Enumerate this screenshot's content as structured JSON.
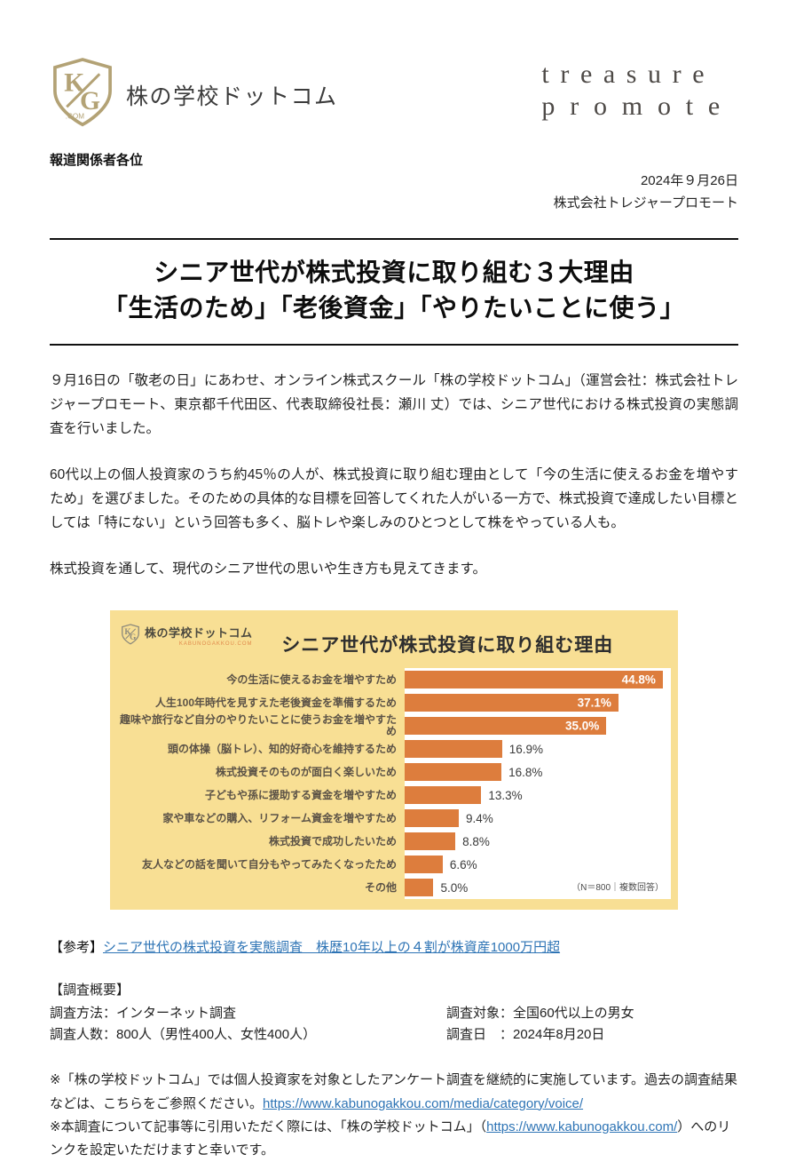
{
  "header": {
    "logo_text": "株の学校ドットコム",
    "logo_mark_k": "K",
    "logo_mark_g": "G",
    "logo_domain": ".COM",
    "company_logo_line1": "treasure",
    "company_logo_line2": "promote",
    "press_to": "報道関係者各位",
    "date": "2024年９月26日",
    "company": "株式会社トレジャープロモート"
  },
  "title": {
    "line1": "シニア世代が株式投資に取り組む３大理由",
    "line2": "「生活のため」「老後資金」「やりたいことに使う」"
  },
  "body": {
    "p1": "９月16日の「敬老の日」にあわせ、オンライン株式スクール「株の学校ドットコム」（運営会社：株式会社トレジャープロモート、東京都千代田区、代表取締役社長：瀬川 丈）では、シニア世代における株式投資の実態調査を行いました。",
    "p2": "60代以上の個人投資家のうち約45％の人が、株式投資に取り組む理由として「今の生活に使えるお金を増やすため」を選びました。そのための具体的な目標を回答してくれた人がいる一方で、株式投資で達成したい目標としては「特にない」という回答も多く、脳トレや楽しみのひとつとして株をやっている人も。",
    "p3": "株式投資を通して、現代のシニア世代の思いや生き方も見えてきます。"
  },
  "chart": {
    "logo_text": "株の学校ドットコム",
    "logo_sub": "KABUNOGAKKOU.COM",
    "inside_label_threshold": 30
  },
  "chart_data": {
    "type": "bar",
    "orientation": "horizontal",
    "title": "シニア世代が株式投資に取り組む理由",
    "categories": [
      "今の生活に使えるお金を増やすため",
      "人生100年時代を見すえた老後資金を準備するため",
      "趣味や旅行など自分のやりたいことに使うお金を増やすため",
      "頭の体操（脳トレ）、知的好奇心を維持するため",
      "株式投資そのものが面白く楽しいため",
      "子どもや孫に援助する資金を増やすため",
      "家や車などの購入、リフォーム資金を増やすため",
      "株式投資で成功したいため",
      "友人などの話を聞いて自分もやってみたくなったため",
      "その他"
    ],
    "values": [
      44.8,
      37.1,
      35.0,
      16.9,
      16.8,
      13.3,
      9.4,
      8.8,
      6.6,
      5.0
    ],
    "value_suffix": "%",
    "xlim": [
      0,
      46.2
    ],
    "note": "（N＝800｜複数回答）",
    "legend": "none",
    "grid": "off"
  },
  "reference": {
    "prefix": "【参考】",
    "link_text": "シニア世代の株式投資を実態調査　株歴10年以上の４割が株資産1000万円超"
  },
  "survey": {
    "heading": "【調査概要】",
    "rows": [
      {
        "left": "調査方法：インターネット調査",
        "right": "調査対象：全国60代以上の男女"
      },
      {
        "left": "調査人数：800人（男性400人、女性400人）",
        "right": "調査日　：2024年8月20日"
      }
    ]
  },
  "notes": {
    "n1_prefix": "※「株の学校ドットコム」では個人投資家を対象としたアンケート調査を継続的に実施しています。過去の調査結果などは、こちらをご参照ください。",
    "n1_link": "https://www.kabunogakkou.com/media/category/voice/",
    "n2_prefix": "※本調査について記事等に引用いただく際には、「株の学校ドットコム」（",
    "n2_link": "https://www.kabunogakkou.com/",
    "n2_suffix": "）へのリンクを設定いただけますと幸いです。"
  },
  "colors": {
    "bar": "#DD7D3D",
    "chart_bg": "#F8DF94",
    "link": "#2E74B5",
    "logo_gold": "#B3A275",
    "accent_orange": "#E08A4C"
  }
}
